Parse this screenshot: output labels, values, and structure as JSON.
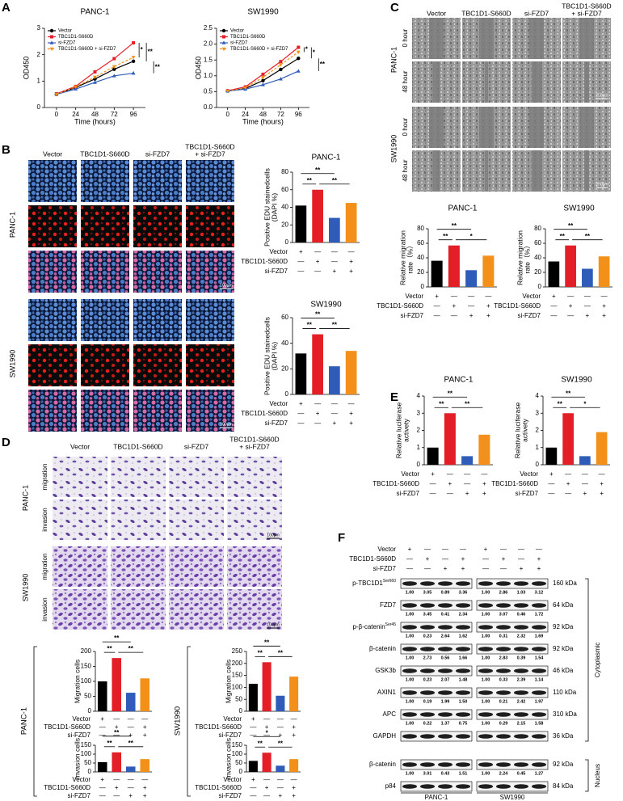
{
  "panel_letters": [
    "A",
    "B",
    "C",
    "D",
    "E",
    "F"
  ],
  "cell_lines": [
    "PANC-1",
    "SW1990"
  ],
  "conditions": [
    {
      "name": "Vector",
      "signs": [
        "+",
        "—",
        "—",
        "—"
      ]
    },
    {
      "name": "TBC1D1-S660D",
      "signs": [
        "—",
        "+",
        "—",
        "+"
      ]
    },
    {
      "name": "si-FZD7",
      "signs": [
        "—",
        "—",
        "+",
        "+"
      ]
    }
  ],
  "image_columns": [
    [
      "Vector"
    ],
    [
      "TBC1D1-S660D"
    ],
    [
      "si-FZD7"
    ],
    [
      "TBC1D1-S660D",
      "+ si-FZD7"
    ]
  ],
  "panel_b": {
    "scale_bar": "100μm"
  },
  "panel_c": {
    "time_rows": [
      "0 hour",
      "48 hour"
    ],
    "scale_bar": "250μm"
  },
  "panel_d": {
    "assay_rows": [
      "migration",
      "invasion"
    ],
    "scale_bar": "100μm"
  },
  "panel_f": {
    "cytoplasmic": {
      "label": "Cytoplasmic",
      "rows": [
        {
          "name": "p-TBC1D1",
          "sup": "Ser660",
          "kda": "160 kDa",
          "quant": [
            [
              "1.00",
              "3.05",
              "0.89",
              "3.36"
            ],
            [
              "1.00",
              "2.86",
              "1.03",
              "3.12"
            ]
          ]
        },
        {
          "name": "FZD7",
          "kda": "64 kDa",
          "quant": [
            [
              "1.00",
              "3.45",
              "0.41",
              "2.34"
            ],
            [
              "1.00",
              "3.07",
              "0.46",
              "1.72"
            ]
          ]
        },
        {
          "name": "p-β-catenin",
          "sup": "Ser45",
          "kda": "92 kDa",
          "quant": [
            [
              "1.00",
              "0.23",
              "2.64",
              "1.62"
            ],
            [
              "1.00",
              "0.31",
              "2.32",
              "1.69"
            ]
          ]
        },
        {
          "name": "β-catenin",
          "kda": "92 kDa",
          "quant": [
            [
              "1.00",
              "2.73",
              "0.56",
              "1.66"
            ],
            [
              "1.00",
              "2.83",
              "0.39",
              "1.54"
            ]
          ]
        },
        {
          "name": "GSK3b",
          "kda": "46 kDa",
          "quant": [
            [
              "1.00",
              "0.23",
              "2.07",
              "1.48"
            ],
            [
              "1.00",
              "0.33",
              "2.39",
              "1.14"
            ]
          ]
        },
        {
          "name": "AXIN1",
          "kda": "110 kDa",
          "quant": [
            [
              "1.00",
              "0.19",
              "1.99",
              "1.50"
            ],
            [
              "1.00",
              "0.21",
              "2.42",
              "1.97"
            ]
          ]
        },
        {
          "name": "APC",
          "kda": "310 kDa",
          "quant": [
            [
              "1.00",
              "0.22",
              "1.37",
              "0.75"
            ],
            [
              "1.00",
              "0.29",
              "2.15",
              "1.58"
            ]
          ]
        },
        {
          "name": "GAPDH",
          "kda": "36 kDa"
        }
      ]
    },
    "nucleus": {
      "label": "Nucleus",
      "rows": [
        {
          "name": "β-catenin",
          "kda": "92 kDa",
          "quant": [
            [
              "1.00",
              "3.01",
              "0.43",
              "1.51"
            ],
            [
              "1.00",
              "2.24",
              "0.45",
              "1.27"
            ]
          ]
        },
        {
          "name": "p84",
          "kda": "84 kDa"
        }
      ]
    }
  },
  "chart_data": [
    {
      "type": "line",
      "title": "PANC-1",
      "x": [
        0,
        24,
        48,
        72,
        96
      ],
      "xlim": [
        -15,
        111
      ],
      "xticks": [
        0,
        24,
        48,
        72,
        96
      ],
      "ylim": [
        0,
        3
      ],
      "yticks": [
        0,
        1,
        2,
        3
      ],
      "xlabel": "Time (hours)",
      "ylabel": [
        "OD450"
      ],
      "legend": "upper left",
      "series": [
        {
          "name": "Vector",
          "color": "#000000",
          "marker": "circle",
          "values": [
            0.5,
            0.76,
            1.08,
            1.45,
            1.75
          ]
        },
        {
          "name": "TBC1D1-S660D",
          "color": "#e41e26",
          "marker": "square",
          "values": [
            0.52,
            0.8,
            1.35,
            1.85,
            2.45
          ]
        },
        {
          "name": "si-FZD7",
          "color": "#2e5cb8",
          "marker": "triangle",
          "values": [
            0.5,
            0.7,
            0.95,
            1.2,
            1.3
          ]
        },
        {
          "name": "TBC1D1-S660D + si-FZD7",
          "color": "#f39019",
          "marker": "triangle-down",
          "dashed": true,
          "values": [
            0.5,
            0.78,
            1.15,
            1.55,
            1.9
          ]
        }
      ],
      "annotations": [
        {
          "text": "*",
          "series": [
            1,
            3
          ]
        },
        {
          "text": "**",
          "series": [
            1,
            0
          ]
        },
        {
          "text": "**",
          "series": [
            0,
            2
          ]
        }
      ]
    },
    {
      "type": "line",
      "title": "SW1990",
      "x": [
        0,
        24,
        48,
        72,
        96
      ],
      "xlim": [
        -15,
        111
      ],
      "xticks": [
        0,
        24,
        48,
        72,
        96
      ],
      "ylim": [
        0,
        2.5
      ],
      "yticks": [
        {
          "value": 0,
          "label": "0.0"
        },
        0.5,
        {
          "value": 1,
          "label": "1.0"
        },
        1.5,
        {
          "value": 2,
          "label": "2.0"
        },
        2.5
      ],
      "xlabel": "Time (hours)",
      "ylabel": [
        "OD450"
      ],
      "legend": "upper left",
      "series": [
        {
          "name": "Vector",
          "color": "#000000",
          "marker": "circle",
          "values": [
            0.52,
            0.6,
            0.85,
            1.2,
            1.55
          ]
        },
        {
          "name": "TBC1D1-S660D",
          "color": "#e41e26",
          "marker": "square",
          "values": [
            0.53,
            0.65,
            1.05,
            1.45,
            1.9
          ]
        },
        {
          "name": "si-FZD7",
          "color": "#2e5cb8",
          "marker": "triangle",
          "values": [
            0.52,
            0.58,
            0.72,
            0.9,
            1.15
          ]
        },
        {
          "name": "TBC1D1-S660D + si-FZD7",
          "color": "#f39019",
          "marker": "triangle-down",
          "dashed": true,
          "values": [
            0.52,
            0.62,
            0.95,
            1.35,
            1.75
          ]
        }
      ],
      "annotations": [
        {
          "text": "*",
          "series": [
            1,
            3
          ]
        },
        {
          "text": "*",
          "series": [
            1,
            0
          ]
        },
        {
          "text": "**",
          "series": [
            0,
            2
          ]
        }
      ]
    },
    {
      "type": "bar",
      "title": "PANC-1",
      "ylabel": [
        "Positive EDU stainedcells",
        "(DAPI %)"
      ],
      "values": [
        42,
        60,
        28,
        45
      ],
      "colors": [
        "#000000",
        "#e41e26",
        "#2e5cb8",
        "#f39019"
      ],
      "ylim": [
        0,
        80
      ],
      "yticks": [
        0,
        20,
        40,
        60,
        80
      ],
      "annotations": [
        {
          "text": "**",
          "groups": [
            0,
            2
          ]
        },
        {
          "text": "**",
          "groups": [
            0,
            1
          ]
        },
        {
          "text": "**",
          "groups": [
            1,
            3
          ]
        }
      ]
    },
    {
      "type": "bar",
      "title": "SW1990",
      "ylabel": [
        "Positive EDU stainedcells",
        "(DAPI %)"
      ],
      "values": [
        32,
        47,
        22,
        34
      ],
      "colors": [
        "#000000",
        "#e41e26",
        "#2e5cb8",
        "#f39019"
      ],
      "ylim": [
        0,
        60
      ],
      "yticks": [
        0,
        20,
        40,
        60
      ],
      "annotations": [
        {
          "text": "**",
          "groups": [
            0,
            2
          ]
        },
        {
          "text": "**",
          "groups": [
            0,
            1
          ]
        },
        {
          "text": "**",
          "groups": [
            1,
            3
          ]
        }
      ]
    },
    {
      "type": "bar",
      "title": "PANC-1",
      "ylabel": [
        "Relative migration",
        "rate（%）"
      ],
      "values": [
        36,
        57,
        23,
        43
      ],
      "colors": [
        "#000000",
        "#e41e26",
        "#2e5cb8",
        "#f39019"
      ],
      "ylim": [
        0,
        80
      ],
      "yticks": [
        0,
        20,
        40,
        60,
        80
      ],
      "annotations": [
        {
          "text": "**",
          "groups": [
            0,
            2
          ]
        },
        {
          "text": "**",
          "groups": [
            0,
            1
          ]
        },
        {
          "text": "*",
          "groups": [
            1,
            3
          ]
        }
      ]
    },
    {
      "type": "bar",
      "title": "SW1990",
      "ylabel": [
        "Relative migration",
        "rate（%）"
      ],
      "values": [
        35,
        57,
        25,
        42
      ],
      "colors": [
        "#000000",
        "#e41e26",
        "#2e5cb8",
        "#f39019"
      ],
      "ylim": [
        0,
        80
      ],
      "yticks": [
        0,
        20,
        40,
        60,
        80
      ],
      "annotations": [
        {
          "text": "**",
          "groups": [
            0,
            2
          ]
        },
        {
          "text": "**",
          "groups": [
            0,
            1
          ]
        },
        {
          "text": "**",
          "groups": [
            1,
            3
          ]
        }
      ]
    },
    {
      "type": "bar",
      "ylabel": [
        "Migration cells"
      ],
      "values": [
        100,
        178,
        62,
        110
      ],
      "colors": [
        "#000000",
        "#e41e26",
        "#2e5cb8",
        "#f39019"
      ],
      "ylim": [
        0,
        200
      ],
      "yticks": [
        0,
        50,
        100,
        150,
        200
      ],
      "annotations": [
        {
          "text": "**",
          "groups": [
            0,
            2
          ]
        },
        {
          "text": "**",
          "groups": [
            0,
            1
          ]
        },
        {
          "text": "**",
          "groups": [
            1,
            3
          ]
        }
      ]
    },
    {
      "type": "bar",
      "ylabel": [
        "Invasion cells"
      ],
      "values": [
        55,
        110,
        30,
        72
      ],
      "colors": [
        "#000000",
        "#e41e26",
        "#2e5cb8",
        "#f39019"
      ],
      "ylim": [
        0,
        150
      ],
      "yticks": [
        0,
        50,
        100,
        150
      ],
      "annotations": [
        {
          "text": "**",
          "groups": [
            0,
            2
          ]
        },
        {
          "text": "**",
          "groups": [
            0,
            1
          ]
        },
        {
          "text": "**",
          "groups": [
            1,
            3
          ]
        }
      ]
    },
    {
      "type": "bar",
      "ylabel": [
        "Migration cells"
      ],
      "values": [
        115,
        205,
        65,
        145
      ],
      "colors": [
        "#000000",
        "#e41e26",
        "#2e5cb8",
        "#f39019"
      ],
      "ylim": [
        0,
        250
      ],
      "yticks": [
        0,
        50,
        100,
        150,
        200,
        250
      ],
      "annotations": [
        {
          "text": "**",
          "groups": [
            0,
            2
          ]
        },
        {
          "text": "**",
          "groups": [
            0,
            1
          ]
        },
        {
          "text": "**",
          "groups": [
            1,
            3
          ]
        }
      ]
    },
    {
      "type": "bar",
      "ylabel": [
        "Invasion cells"
      ],
      "values": [
        62,
        108,
        35,
        72
      ],
      "colors": [
        "#000000",
        "#e41e26",
        "#2e5cb8",
        "#f39019"
      ],
      "ylim": [
        0,
        150
      ],
      "yticks": [
        0,
        50,
        100,
        150
      ],
      "annotations": [
        {
          "text": "*",
          "groups": [
            0,
            2
          ]
        },
        {
          "text": "**",
          "groups": [
            0,
            1
          ]
        },
        {
          "text": "**",
          "groups": [
            1,
            3
          ]
        }
      ]
    },
    {
      "type": "bar",
      "title": "PANC-1",
      "ylabel": [
        "Relative luciferase",
        "activety"
      ],
      "values": [
        1.0,
        3.0,
        0.5,
        1.75
      ],
      "colors": [
        "#000000",
        "#e41e26",
        "#2e5cb8",
        "#f39019"
      ],
      "ylim": [
        0,
        4
      ],
      "yticks": [
        0,
        1,
        2,
        3,
        4
      ],
      "annotations": [
        {
          "text": "**",
          "groups": [
            0,
            2
          ]
        },
        {
          "text": "**",
          "groups": [
            0,
            1
          ]
        },
        {
          "text": "**",
          "groups": [
            1,
            3
          ]
        }
      ]
    },
    {
      "type": "bar",
      "title": "SW1990",
      "ylabel": [
        "Relative luciferase",
        "activety"
      ],
      "values": [
        1.0,
        3.0,
        0.5,
        1.9
      ],
      "colors": [
        "#000000",
        "#e41e26",
        "#2e5cb8",
        "#f39019"
      ],
      "ylim": [
        0,
        4
      ],
      "yticks": [
        0,
        1,
        2,
        3,
        4
      ],
      "annotations": [
        {
          "text": "**",
          "groups": [
            0,
            2
          ]
        },
        {
          "text": "**",
          "groups": [
            0,
            1
          ]
        },
        {
          "text": "*",
          "groups": [
            1,
            3
          ]
        }
      ]
    }
  ]
}
